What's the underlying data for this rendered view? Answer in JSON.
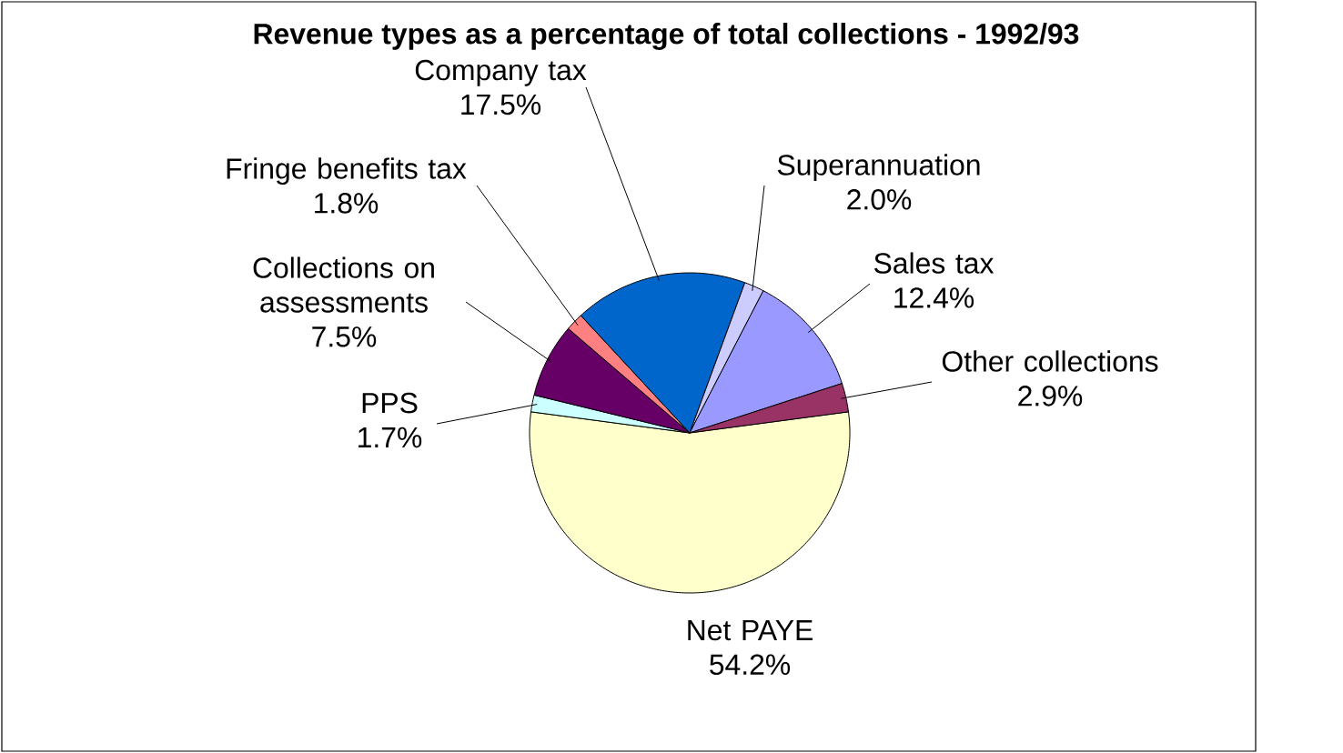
{
  "chart_data": {
    "type": "pie",
    "title": "Revenue types as a percentage of total collections - 1992/93",
    "categories": [
      "Net PAYE",
      "PPS",
      "Collections on assessments",
      "Fringe benefits tax",
      "Company tax",
      "Superannuation",
      "Sales tax",
      "Other collections"
    ],
    "values": [
      54.2,
      1.7,
      7.5,
      1.8,
      17.5,
      2.0,
      12.4,
      2.9
    ],
    "value_labels": [
      "54.2%",
      "1.7%",
      "7.5%",
      "1.8%",
      "17.5%",
      "2.0%",
      "12.4%",
      "2.9%"
    ],
    "colors": [
      "#ffffcc",
      "#ccffff",
      "#660066",
      "#ff8080",
      "#0066cc",
      "#ccccff",
      "#9999ff",
      "#993366"
    ]
  }
}
